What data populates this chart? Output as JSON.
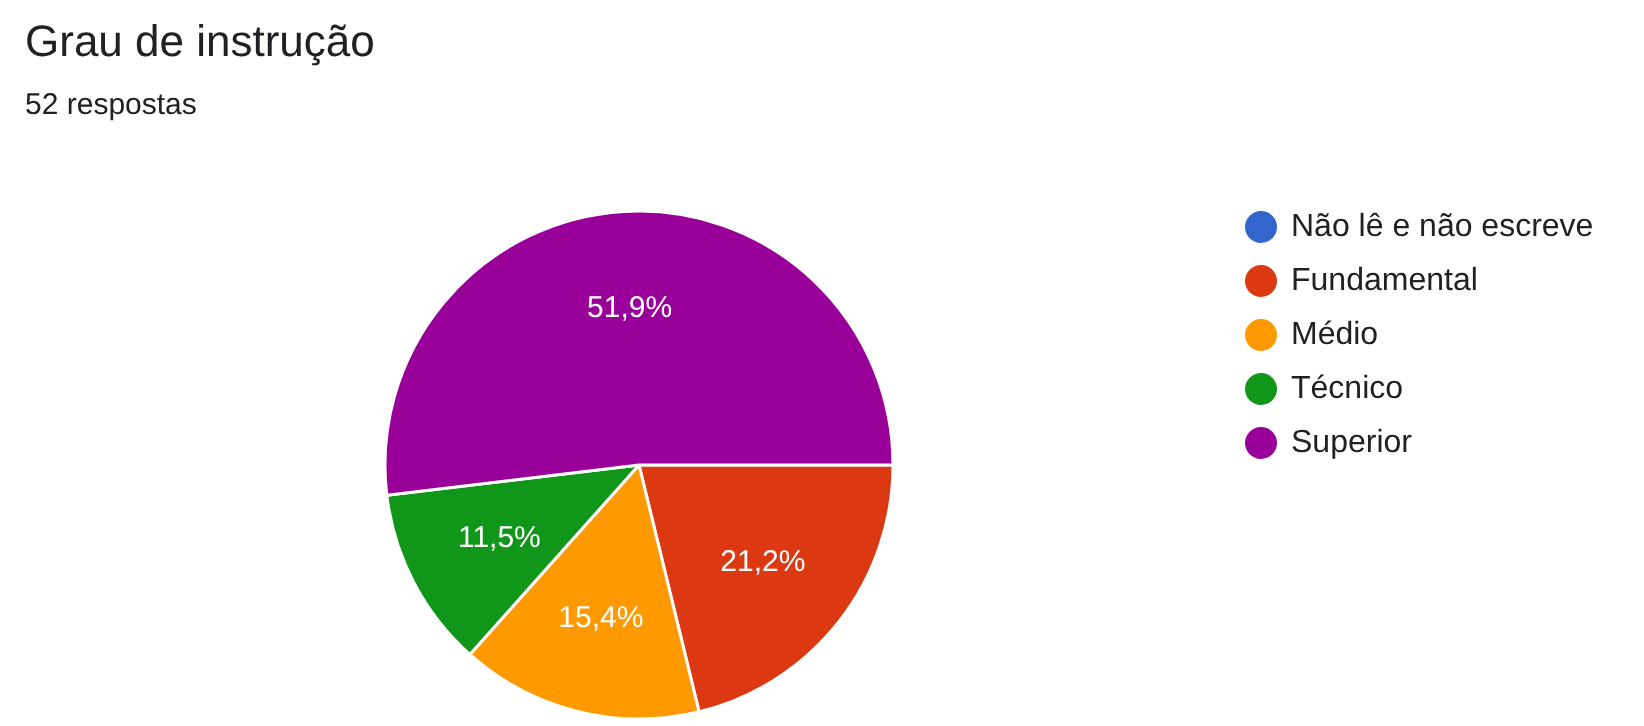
{
  "chart_data": {
    "type": "pie",
    "title": "Grau de instrução",
    "subtitle": "52 respostas",
    "categories": [
      "Não lê e não escreve",
      "Fundamental",
      "Médio",
      "Técnico",
      "Superior"
    ],
    "values": [
      0,
      21.2,
      15.4,
      11.5,
      51.9
    ],
    "colors": [
      "#3366cc",
      "#dc3912",
      "#ff9900",
      "#109618",
      "#990099"
    ],
    "value_labels": [
      null,
      "21,2%",
      "15,4%",
      "11,5%",
      "51,9%"
    ],
    "legend": "right"
  }
}
